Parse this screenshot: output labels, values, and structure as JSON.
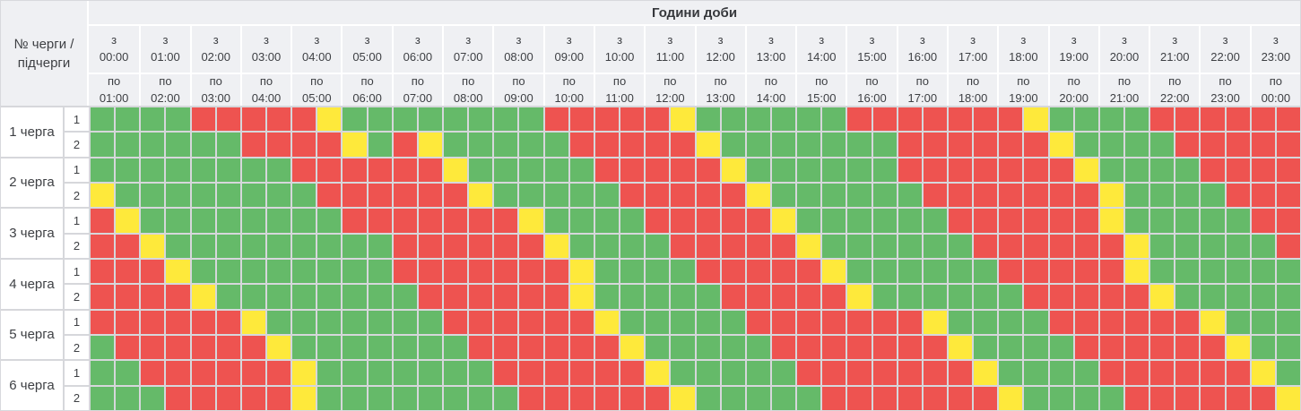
{
  "title": "Години доби",
  "corner_label": "№ черги / підчерги",
  "hour_from_word": "з",
  "hour_to_word": "по",
  "hours": [
    {
      "from": "00:00",
      "to": "01:00"
    },
    {
      "from": "01:00",
      "to": "02:00"
    },
    {
      "from": "02:00",
      "to": "03:00"
    },
    {
      "from": "03:00",
      "to": "04:00"
    },
    {
      "from": "04:00",
      "to": "05:00"
    },
    {
      "from": "05:00",
      "to": "06:00"
    },
    {
      "from": "06:00",
      "to": "07:00"
    },
    {
      "from": "07:00",
      "to": "08:00"
    },
    {
      "from": "08:00",
      "to": "09:00"
    },
    {
      "from": "09:00",
      "to": "10:00"
    },
    {
      "from": "10:00",
      "to": "11:00"
    },
    {
      "from": "11:00",
      "to": "12:00"
    },
    {
      "from": "12:00",
      "to": "13:00"
    },
    {
      "from": "13:00",
      "to": "14:00"
    },
    {
      "from": "14:00",
      "to": "15:00"
    },
    {
      "from": "15:00",
      "to": "16:00"
    },
    {
      "from": "16:00",
      "to": "17:00"
    },
    {
      "from": "17:00",
      "to": "18:00"
    },
    {
      "from": "18:00",
      "to": "19:00"
    },
    {
      "from": "19:00",
      "to": "20:00"
    },
    {
      "from": "20:00",
      "to": "21:00"
    },
    {
      "from": "21:00",
      "to": "22:00"
    },
    {
      "from": "22:00",
      "to": "23:00"
    },
    {
      "from": "23:00",
      "to": "00:00"
    }
  ],
  "cell_colors": {
    "G": "#65ba69",
    "R": "#ee5350",
    "Y": "#fee93b"
  },
  "queues": [
    {
      "label": "1 черга",
      "subqueues": [
        {
          "id": "1",
          "cells": "GGGGRRRRRYGGGGGGGGRRRRRYGGGGGGRRRRRRRYGGGGRRRRRR"
        },
        {
          "id": "2",
          "cells": "GGGGGGRRRRYGRYGGGGGRRRRRYGGGGGGGRRRRRRYGGGGRRRRR"
        }
      ]
    },
    {
      "label": "2 черга",
      "subqueues": [
        {
          "id": "1",
          "cells": "GGGGGGGGRRRRRRYGGGGGRRRRRYGGGGGGRRRRRRRYGGGGRRRR"
        },
        {
          "id": "2",
          "cells": "YGGGGGGGGRRRRRRYGGGGGRRRRRYGGGGGGRRRRRRRYGGGGRRR"
        }
      ]
    },
    {
      "label": "3 черга",
      "subqueues": [
        {
          "id": "1",
          "cells": "RYGGGGGGGGRRRRRRRYGGGGRRRRRYGGGGGGRRRRRRYGGGGGRR"
        },
        {
          "id": "2",
          "cells": "RRYGGGGGGGGGRRRRRRYGGGGRRRRRYGGGGGGRRRRRRYGGGGGR"
        }
      ]
    },
    {
      "label": "4 черга",
      "subqueues": [
        {
          "id": "1",
          "cells": "RRRYGGGGGGGGRRRRRRRYGGGGRRRRRYGGGGGGRRRRRYGGGGGG"
        },
        {
          "id": "2",
          "cells": "RRRRYGGGGGGGGRRRRRRYGGGGGRRRRRYGGGGGGRRRRRYGGGGG"
        }
      ]
    },
    {
      "label": "5 черга",
      "subqueues": [
        {
          "id": "1",
          "cells": "RRRRRRYGGGGGGGRRRRRRYGGGGGRRRRRRRYGGGGRRRRRRYGGG"
        },
        {
          "id": "2",
          "cells": "GRRRRRRYGGGGGGGRRRRRRYGGGGGRRRRRRRYGGGGRRRRRRYGG"
        }
      ]
    },
    {
      "label": "6 черга",
      "subqueues": [
        {
          "id": "1",
          "cells": "GGRRRRRRYGGGGGGGRRRRRRYGGGGGRRRRRRRYGGGGRRRRRRYG"
        },
        {
          "id": "2",
          "cells": "GGGRRRRRYGGGGGGGGRRRRRRYGGGGGRRRRRRRYGGGGRRRRRRY"
        }
      ]
    }
  ]
}
